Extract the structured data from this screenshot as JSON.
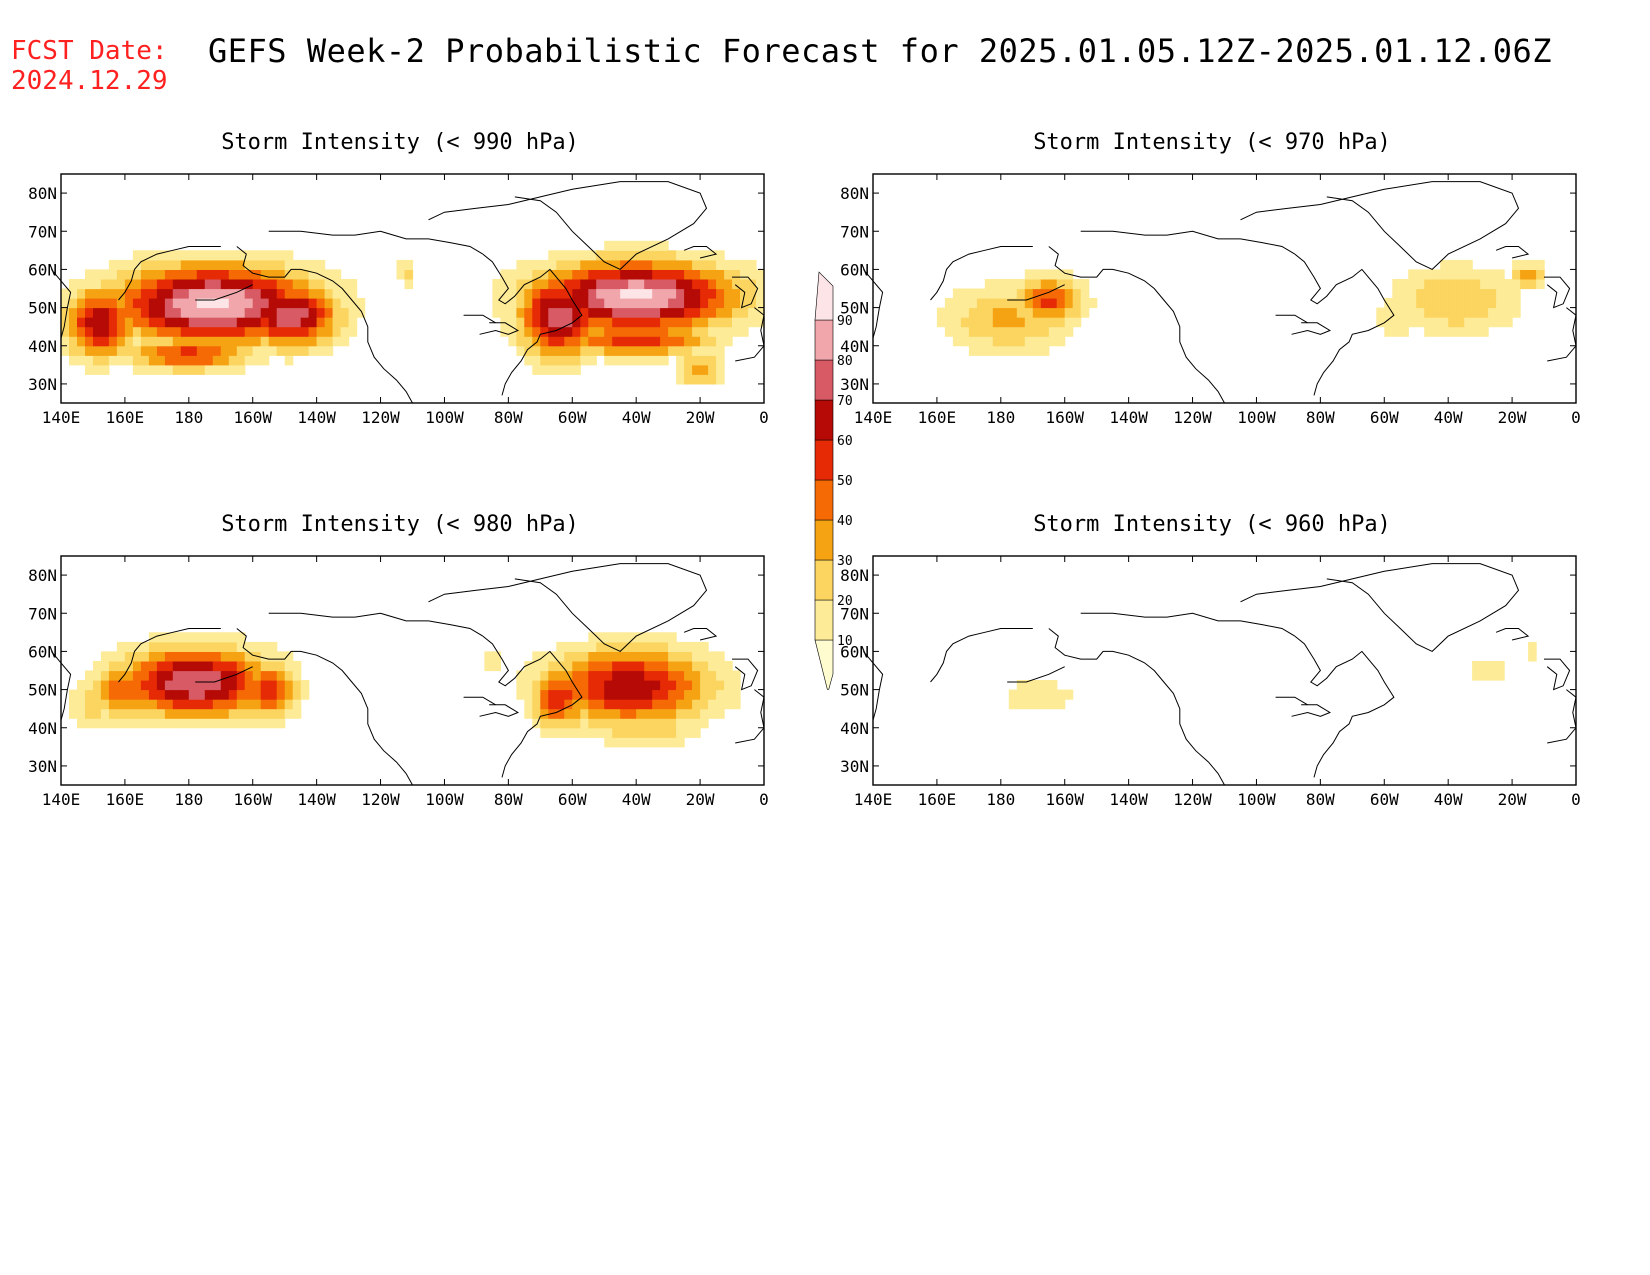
{
  "header": {
    "fcst_label": "FCST Date:",
    "fcst_date": "2024.12.29",
    "title": "GEFS Week-2 Probabilistic Forecast for 2025.01.05.12Z-2025.01.12.06Z"
  },
  "axes": {
    "lat_ticks": [
      "80N",
      "70N",
      "60N",
      "50N",
      "40N",
      "30N"
    ],
    "lat_values": [
      80,
      70,
      60,
      50,
      40,
      30
    ],
    "lon_ticks": [
      "140E",
      "160E",
      "180",
      "160W",
      "140W",
      "120W",
      "100W",
      "80W",
      "60W",
      "40W",
      "20W",
      "0"
    ],
    "lon_values": [
      140,
      160,
      180,
      200,
      220,
      240,
      260,
      280,
      300,
      320,
      340,
      360
    ],
    "lat_range": [
      25,
      85
    ],
    "lon_range": [
      140,
      360
    ]
  },
  "panels": [
    {
      "id": "p990",
      "title": "Storm Intensity (< 990 hPa)",
      "position": "top-left",
      "level": 990
    },
    {
      "id": "p970",
      "title": "Storm Intensity (< 970 hPa)",
      "position": "top-right",
      "level": 970
    },
    {
      "id": "p980",
      "title": "Storm Intensity (< 980 hPa)",
      "position": "bottom-left",
      "level": 980
    },
    {
      "id": "p960",
      "title": "Storm Intensity (< 960 hPa)",
      "position": "bottom-right",
      "level": 960
    }
  ],
  "colorbar": {
    "levels": [
      "10",
      "20",
      "30",
      "40",
      "50",
      "60",
      "70",
      "80",
      "90"
    ],
    "colors": [
      "#fffdd0",
      "#fdeb97",
      "#fbd560",
      "#f6a313",
      "#f56a05",
      "#e52a05",
      "#b50a05",
      "#d85a64",
      "#f0a6aa",
      "#fde4e6"
    ]
  },
  "chart_data": {
    "type": "heatmap",
    "units": "probability (%)",
    "fields": [
      {
        "panel": "p990",
        "blobs": [
          {
            "lon": 188,
            "lat": 51,
            "rlon": 34,
            "rlat": 11,
            "peak": 93
          },
          {
            "lon": 152,
            "lat": 46,
            "rlon": 12,
            "rlat": 10,
            "peak": 68
          },
          {
            "lon": 212,
            "lat": 48,
            "rlon": 16,
            "rlat": 9,
            "peak": 78
          },
          {
            "lon": 180,
            "lat": 38,
            "rlon": 22,
            "rlat": 5,
            "peak": 52
          },
          {
            "lon": 248,
            "lat": 59,
            "rlon": 4,
            "rlat": 4,
            "peak": 22
          },
          {
            "lon": 320,
            "lat": 53,
            "rlon": 34,
            "rlat": 10,
            "peak": 92
          },
          {
            "lon": 296,
            "lat": 48,
            "rlon": 14,
            "rlat": 12,
            "peak": 76
          },
          {
            "lon": 320,
            "lat": 42,
            "rlon": 26,
            "rlat": 5,
            "peak": 58
          },
          {
            "lon": 340,
            "lat": 34,
            "rlon": 8,
            "rlat": 5,
            "peak": 38
          }
        ]
      },
      {
        "panel": "p970",
        "blobs": [
          {
            "lon": 195,
            "lat": 52,
            "rlon": 12,
            "rlat": 7,
            "peak": 52
          },
          {
            "lon": 182,
            "lat": 47,
            "rlon": 22,
            "rlat": 10,
            "peak": 32
          },
          {
            "lon": 168,
            "lat": 46,
            "rlon": 10,
            "rlat": 5,
            "peak": 20
          },
          {
            "lon": 322,
            "lat": 52,
            "rlon": 22,
            "rlat": 10,
            "peak": 30
          },
          {
            "lon": 345,
            "lat": 58,
            "rlon": 6,
            "rlat": 4,
            "peak": 36
          },
          {
            "lon": 304,
            "lat": 47,
            "rlon": 10,
            "rlat": 6,
            "peak": 16
          }
        ]
      },
      {
        "panel": "p980",
        "blobs": [
          {
            "lon": 182,
            "lat": 52,
            "rlon": 26,
            "rlat": 10,
            "peak": 80
          },
          {
            "lon": 160,
            "lat": 50,
            "rlon": 10,
            "rlat": 8,
            "peak": 52
          },
          {
            "lon": 205,
            "lat": 50,
            "rlon": 10,
            "rlat": 8,
            "peak": 56
          },
          {
            "lon": 150,
            "lat": 46,
            "rlon": 8,
            "rlat": 8,
            "peak": 24
          },
          {
            "lon": 318,
            "lat": 51,
            "rlon": 28,
            "rlat": 11,
            "peak": 68
          },
          {
            "lon": 296,
            "lat": 48,
            "rlon": 10,
            "rlat": 9,
            "peak": 56
          },
          {
            "lon": 322,
            "lat": 40,
            "rlon": 20,
            "rlat": 5,
            "peak": 30
          },
          {
            "lon": 275,
            "lat": 57,
            "rlon": 4,
            "rlat": 3,
            "peak": 18
          }
        ]
      },
      {
        "panel": "p960",
        "blobs": [
          {
            "lon": 192,
            "lat": 48,
            "rlon": 14,
            "rlat": 6,
            "peak": 18
          },
          {
            "lon": 333,
            "lat": 55,
            "rlon": 10,
            "rlat": 4,
            "peak": 14
          },
          {
            "lon": 346,
            "lat": 60,
            "rlon": 4,
            "rlat": 3,
            "peak": 14
          }
        ]
      }
    ]
  }
}
